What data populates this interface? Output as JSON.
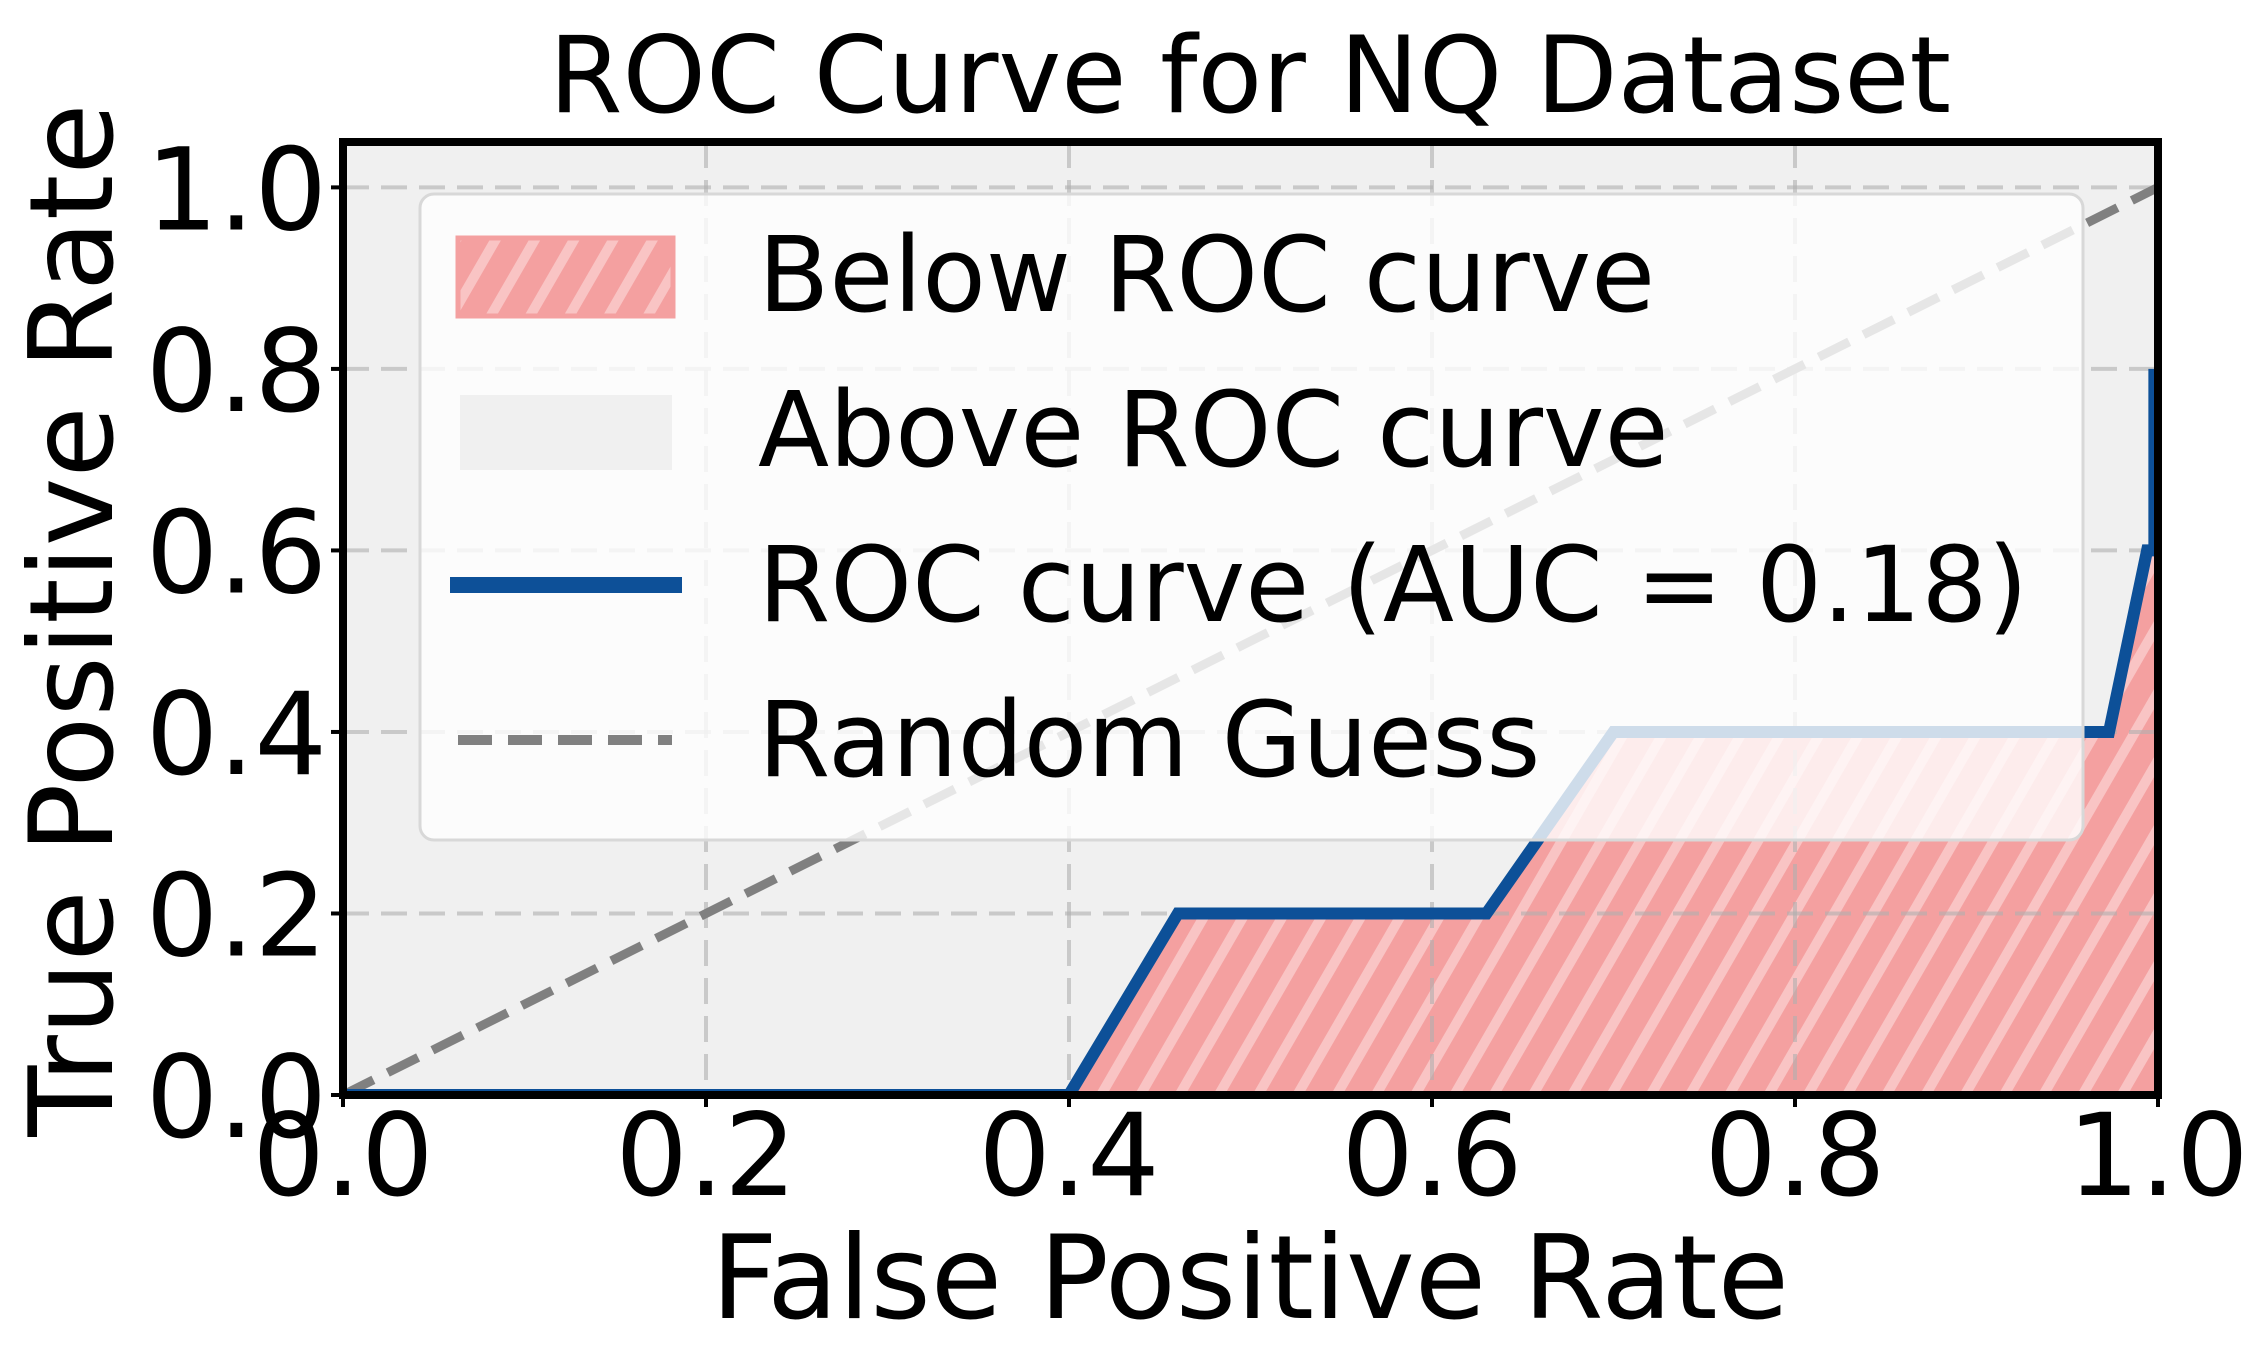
{
  "chart_data": {
    "type": "line",
    "title": "ROC Curve for NQ Dataset",
    "xlabel": "False Positive Rate",
    "ylabel": "True Positive Rate",
    "xlim": [
      0,
      1.0
    ],
    "ylim": [
      0,
      1.05
    ],
    "xticks": [
      "0.0",
      "0.2",
      "0.4",
      "0.6",
      "0.8",
      "1.0"
    ],
    "yticks": [
      "0.0",
      "0.2",
      "0.4",
      "0.6",
      "0.8",
      "1.0"
    ],
    "grid": true,
    "legend_placement": "upper-center",
    "series": [
      {
        "name": "ROC curve (AUC = 0.18)",
        "color": "#0d5098",
        "x": [
          0.0,
          0.4,
          0.46,
          0.63,
          0.7,
          0.973,
          0.994,
          0.998,
          0.998
        ],
        "y": [
          0.0,
          0.0,
          0.2,
          0.2,
          0.4,
          0.4,
          0.6,
          0.6,
          0.8
        ]
      },
      {
        "name": "Random Guess",
        "color": "#808080",
        "x": [
          0,
          1
        ],
        "y": [
          0,
          1
        ]
      }
    ],
    "fills": [
      {
        "name": "Below ROC curve",
        "color": "#f4a0a0",
        "hatch": "diagonal"
      },
      {
        "name": "Above ROC curve",
        "color": "#f0f0f0"
      }
    ],
    "legend": [
      "Below ROC curve",
      "Above ROC curve",
      "ROC curve (AUC = 0.18)",
      "Random Guess"
    ]
  }
}
